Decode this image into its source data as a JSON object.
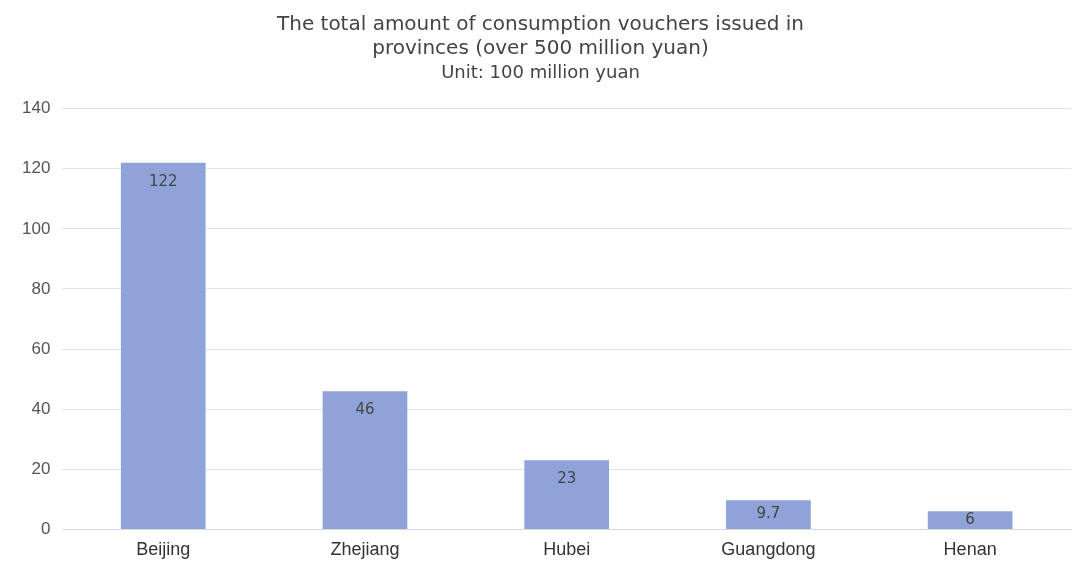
{
  "chart_data": {
    "type": "bar",
    "title": "The total amount of consumption vouchers issued in provinces (over 500 million yuan)",
    "subtitle": "Unit: 100 million yuan",
    "categories": [
      "Beijing",
      "Zhejiang",
      "Hubei",
      "Guangdong",
      "Henan"
    ],
    "values": [
      122,
      46,
      23,
      9.7,
      6
    ],
    "color": "#8fa3d8",
    "ylim": [
      0,
      140
    ],
    "yticks": [
      0,
      20,
      40,
      60,
      80,
      100,
      120,
      140
    ],
    "grid": "y",
    "data_labels": true
  }
}
